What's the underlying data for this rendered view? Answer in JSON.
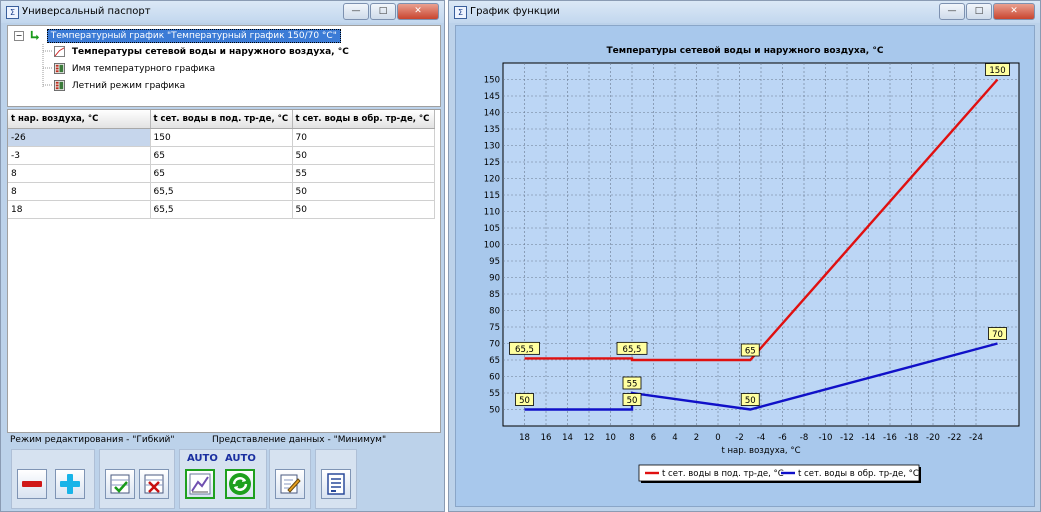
{
  "left_window": {
    "title": "Универсальный паспорт",
    "buttons": {
      "minimize": "—",
      "maximize": "□",
      "close": "✕"
    },
    "tree": {
      "root": "Температурный график \"Температурный график 150/70 °C\"",
      "children": [
        "Температуры сетевой воды и наружного воздуха, °C",
        "Имя температурного графика",
        "Летний режим графика"
      ]
    },
    "table": {
      "headers": [
        "t нар. воздуха, °C",
        "t сет. воды в под. тр-де, °C",
        "t сет. воды в обр. тр-де, °C"
      ],
      "rows": [
        [
          "-26",
          "150",
          "70"
        ],
        [
          "-3",
          "65",
          "50"
        ],
        [
          "8",
          "65",
          "55"
        ],
        [
          "8",
          "65,5",
          "50"
        ],
        [
          "18",
          "65,5",
          "50"
        ]
      ]
    },
    "status": {
      "edit_mode": "Режим редактирования - \"Гибкий\"",
      "view_mode": "Представление данных - \"Минимум\""
    },
    "toolbar": {
      "auto_label_1": "AUTO",
      "auto_label_2": "AUTO"
    },
    "colors": {
      "minus": "#d01818",
      "plus": "#18b4e8",
      "auto_border": "#1ea01e"
    }
  },
  "right_window": {
    "title": "График функции",
    "buttons": {
      "minimize": "—",
      "maximize": "□",
      "close": "✕"
    }
  },
  "chart_data": {
    "type": "line",
    "title": "Температуры сетевой воды и наружного воздуха, °C",
    "xlabel": "t нар. воздуха, °C",
    "ylabel": "",
    "x_reversed": true,
    "xlim": [
      20,
      -28
    ],
    "ylim": [
      45,
      155
    ],
    "x_ticks": [
      18,
      16,
      14,
      12,
      10,
      8,
      6,
      4,
      2,
      0,
      -2,
      -4,
      -6,
      -8,
      -10,
      -12,
      -14,
      -16,
      -18,
      -20,
      -22,
      -24
    ],
    "x_tick_labels": [
      "18",
      "16",
      "14",
      "12",
      "10",
      "8",
      "6",
      "4",
      "2",
      "0",
      "-2",
      "-4",
      "-6",
      "-8",
      "-10",
      "-12",
      "-14",
      "-16",
      "-18",
      "-20",
      "-22",
      "-24"
    ],
    "y_ticks": [
      50,
      55,
      60,
      65,
      70,
      75,
      80,
      85,
      90,
      95,
      100,
      105,
      110,
      115,
      120,
      125,
      130,
      135,
      140,
      145,
      150
    ],
    "grid": true,
    "legend_position": "bottom-center",
    "series": [
      {
        "name": "t сет. воды в под. тр-де, °C",
        "color": "#e01010",
        "x": [
          18,
          8,
          8,
          -3,
          -26
        ],
        "y": [
          65.5,
          65.5,
          65,
          65,
          150
        ],
        "labels": [
          {
            "x": 18,
            "y": 65.5,
            "text": "65,5"
          },
          {
            "x": 8,
            "y": 65.5,
            "text": "65,5"
          },
          {
            "x": -3,
            "y": 65,
            "text": "65"
          },
          {
            "x": -26,
            "y": 150,
            "text": "150"
          }
        ]
      },
      {
        "name": "t сет. воды в обр. тр-де, °C",
        "color": "#1010c8",
        "x": [
          18,
          8,
          8,
          -3,
          -26
        ],
        "y": [
          50,
          50,
          55,
          50,
          70
        ],
        "labels": [
          {
            "x": 18,
            "y": 50,
            "text": "50"
          },
          {
            "x": 8,
            "y": 55,
            "text": "55"
          },
          {
            "x": 8,
            "y": 50,
            "text": "50"
          },
          {
            "x": -3,
            "y": 50,
            "text": "50"
          },
          {
            "x": -26,
            "y": 70,
            "text": "70"
          }
        ]
      }
    ]
  }
}
